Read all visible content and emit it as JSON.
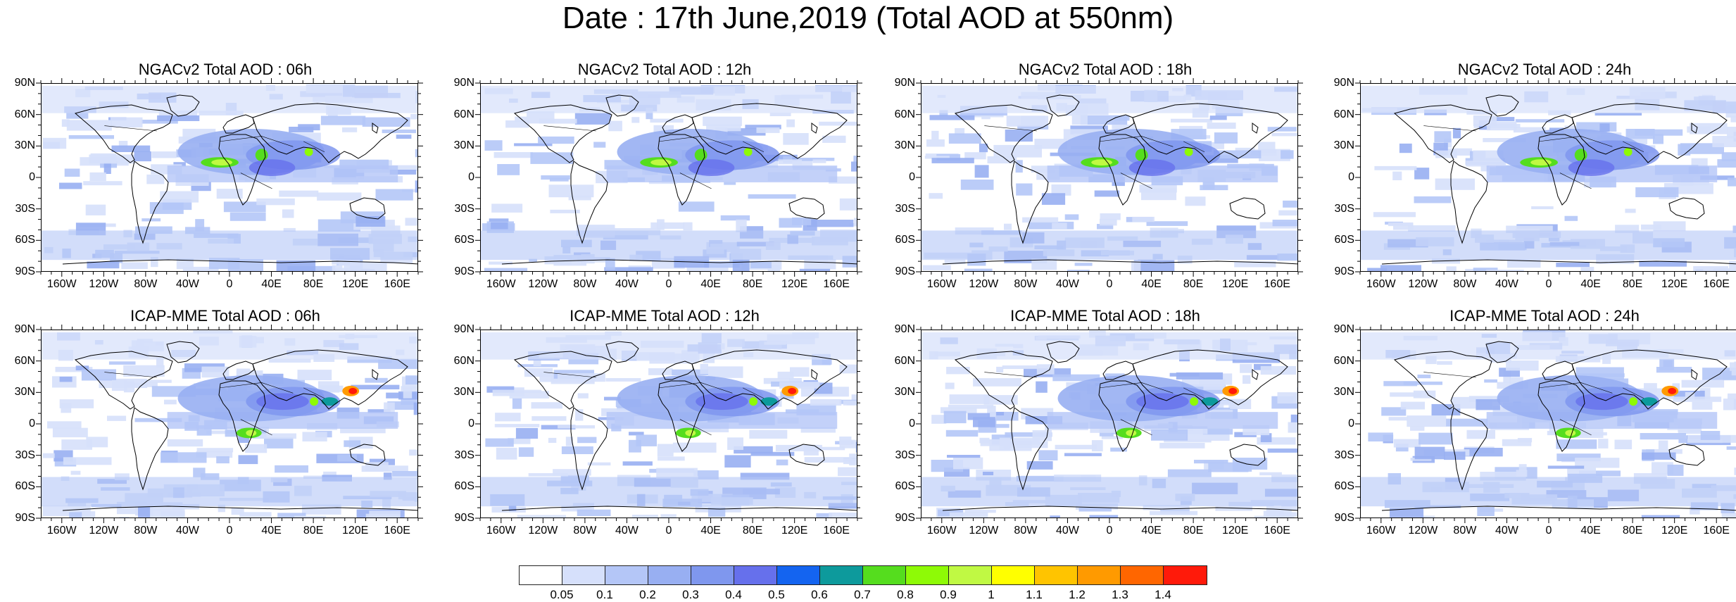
{
  "title": "Date : 17th June,2019 (Total AOD at 550nm)",
  "panels": [
    {
      "title": "NGACv2 Total AOD : 06h",
      "model": "NGACv2"
    },
    {
      "title": "NGACv2 Total AOD : 12h",
      "model": "NGACv2"
    },
    {
      "title": "NGACv2 Total AOD : 18h",
      "model": "NGACv2"
    },
    {
      "title": "NGACv2 Total AOD : 24h",
      "model": "NGACv2"
    },
    {
      "title": "ICAP-MME Total AOD : 06h",
      "model": "ICAP-MME"
    },
    {
      "title": "ICAP-MME Total AOD : 12h",
      "model": "ICAP-MME"
    },
    {
      "title": "ICAP-MME Total AOD : 18h",
      "model": "ICAP-MME"
    },
    {
      "title": "ICAP-MME Total AOD : 24h",
      "model": "ICAP-MME"
    }
  ],
  "lat_ticks": [
    "90N",
    "60N",
    "30N",
    "0",
    "30S",
    "60S",
    "90S"
  ],
  "lon_ticks": [
    "160W",
    "120W",
    "80W",
    "40W",
    "0",
    "40E",
    "80E",
    "120E",
    "160E"
  ],
  "colorbar": {
    "labels": [
      "0.05",
      "0.1",
      "0.2",
      "0.3",
      "0.4",
      "0.5",
      "0.6",
      "0.7",
      "0.8",
      "0.9",
      "1",
      "1.1",
      "1.2",
      "1.3",
      "1.4"
    ],
    "colors": [
      "#ffffff",
      "#d6e0fb",
      "#b4c6f7",
      "#98aff2",
      "#7f97ee",
      "#6670ec",
      "#1464f0",
      "#0d9a9c",
      "#55dd1e",
      "#8efa06",
      "#c0f943",
      "#ffff00",
      "#ffc400",
      "#ff9a00",
      "#ff6600",
      "#ff1a0a"
    ]
  }
}
